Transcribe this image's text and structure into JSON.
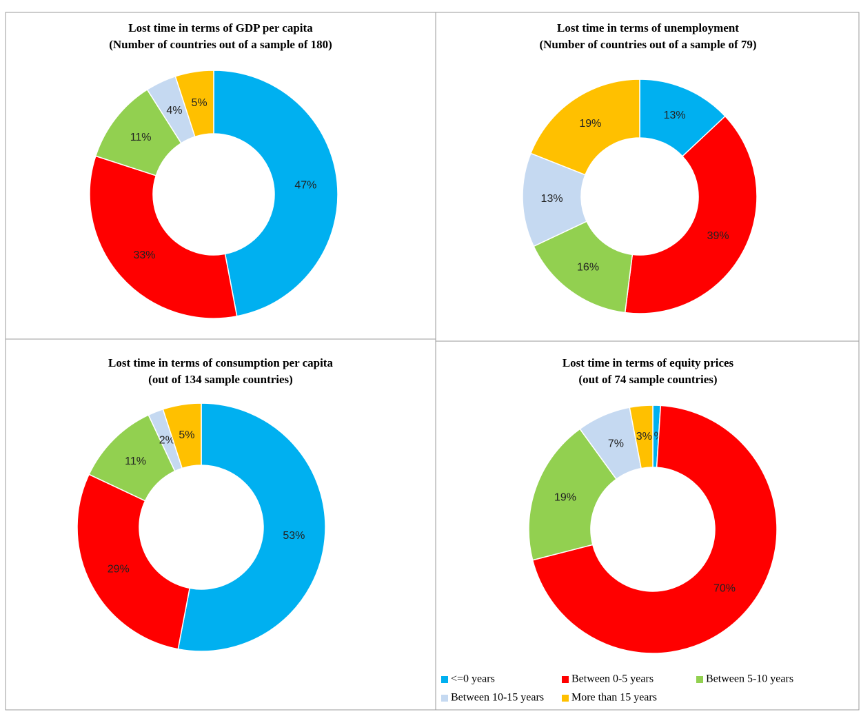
{
  "chart_data": [
    {
      "type": "doughnut",
      "title": "Lost time in terms of GDP per capita",
      "subtitle": "(Number of countries out of a sample of 180)",
      "values": [
        47,
        33,
        11,
        4,
        5
      ],
      "value_labels": [
        "47%",
        "33%",
        "11%",
        "4%",
        "5%"
      ],
      "colors": [
        "#00b0f0",
        "#ff0000",
        "#92d050",
        "#c5d9f1",
        "#ffc000"
      ]
    },
    {
      "type": "doughnut",
      "title": "Lost time in terms of unemployment",
      "subtitle": "(Number of countries out of a sample of 79)",
      "values": [
        13,
        39,
        16,
        13,
        19
      ],
      "value_labels": [
        "13%",
        "39%",
        "16%",
        "13%",
        "19%"
      ],
      "colors": [
        "#00b0f0",
        "#ff0000",
        "#92d050",
        "#c5d9f1",
        "#ffc000"
      ]
    },
    {
      "type": "doughnut",
      "title": "Lost time in terms of consumption per capita",
      "subtitle": "(out of 134 sample countries)",
      "values": [
        53,
        29,
        11,
        2,
        5
      ],
      "value_labels": [
        "53%",
        "29%",
        "11%",
        "2%",
        "5%"
      ],
      "colors": [
        "#00b0f0",
        "#ff0000",
        "#92d050",
        "#c5d9f1",
        "#ffc000"
      ]
    },
    {
      "type": "doughnut",
      "title": "Lost time in terms of equity prices",
      "subtitle": "(out of 74 sample countries)",
      "categories": [
        "<=0 years",
        "Between 0-5 years",
        "Between 5-10 years",
        "Between 10-15 years",
        "More than 15 years"
      ],
      "values": [
        1,
        70,
        19,
        7,
        3
      ],
      "value_labels": [
        "1%",
        "70%",
        "19%",
        "7%",
        "3%"
      ],
      "colors": [
        "#00b0f0",
        "#ff0000",
        "#92d050",
        "#c5d9f1",
        "#ffc000"
      ],
      "legend": "bottom"
    }
  ]
}
